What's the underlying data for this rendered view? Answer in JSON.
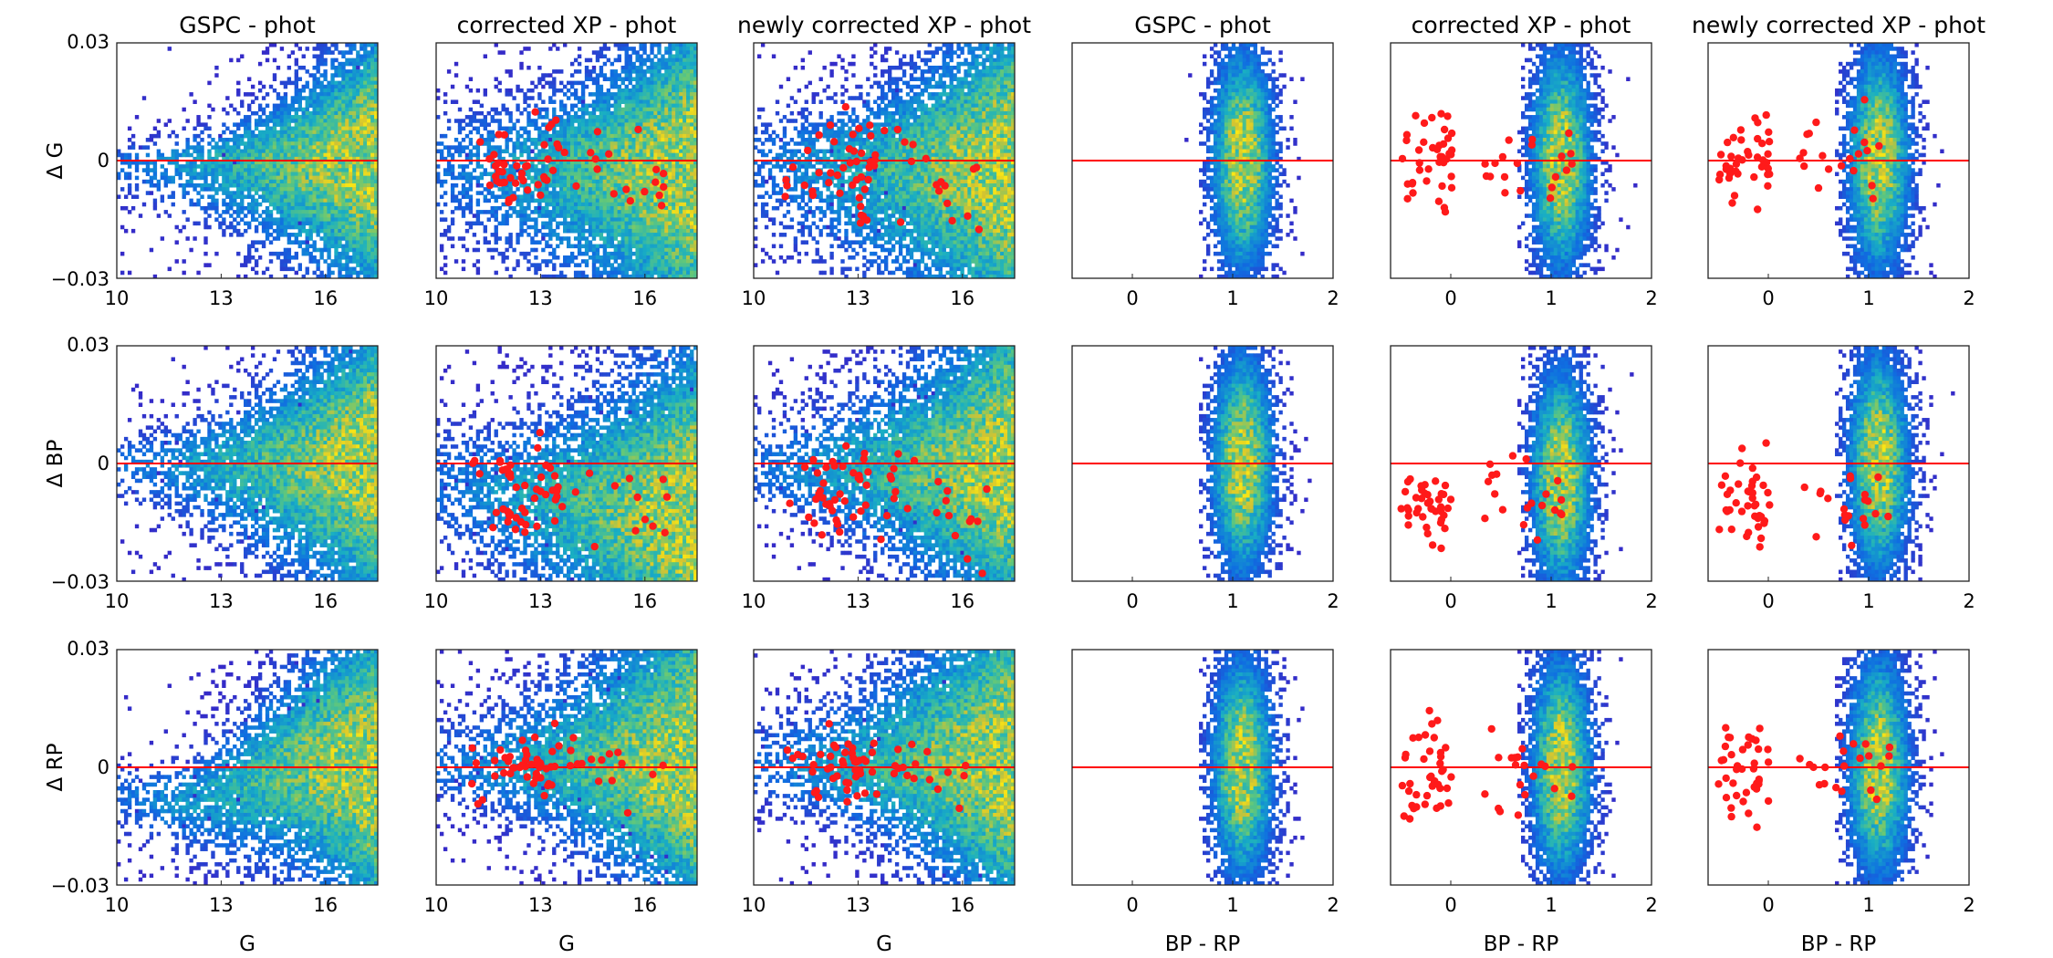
{
  "chart_data": {
    "type": "heatmap",
    "description_units": "magnitudes",
    "column_titles": [
      "GSPC - phot",
      "corrected XP - phot",
      "newly corrected XP - phot",
      "GSPC - phot",
      "corrected XP - phot",
      "newly corrected XP - phot"
    ],
    "row_ylabels": [
      "Δ G",
      "Δ BP",
      "Δ RP"
    ],
    "xlabels": [
      "G",
      "G",
      "G",
      "BP - RP",
      "BP - RP",
      "BP - RP"
    ],
    "ylim": [
      -0.03,
      0.03
    ],
    "ytick_labels": [
      "0.03",
      "0",
      "-0.03"
    ],
    "xlim_G": [
      10,
      17.5
    ],
    "xticks_G": [
      "10",
      "13",
      "16"
    ],
    "xlim_color": [
      -0.6,
      2
    ],
    "xticks_color": [
      "0",
      "1",
      "2"
    ],
    "reference_line": {
      "y": 0,
      "color": "#ff0000"
    },
    "colors": {
      "density_low": "#3b2fc0",
      "density_mid": "#25c0b0",
      "density_high": "#f2e21a",
      "outlier": "#ff1a1a"
    },
    "series": [
      {
        "name": "density histogram",
        "kind": "2d-histogram"
      },
      {
        "name": "outlier stars",
        "kind": "scatter",
        "marker_color": "#ff1a1a"
      }
    ],
    "panels": [
      {
        "row": 0,
        "col": 0,
        "x_axis": "G",
        "title": "GSPC - phot",
        "has_points": false
      },
      {
        "row": 0,
        "col": 1,
        "x_axis": "G",
        "title": "corrected XP - phot",
        "has_points": true
      },
      {
        "row": 0,
        "col": 2,
        "x_axis": "G",
        "title": "newly corrected XP - phot",
        "has_points": true
      },
      {
        "row": 0,
        "col": 3,
        "x_axis": "BP - RP",
        "title": "GSPC - phot",
        "has_points": false
      },
      {
        "row": 0,
        "col": 4,
        "x_axis": "BP - RP",
        "title": "corrected XP - phot",
        "has_points": true
      },
      {
        "row": 0,
        "col": 5,
        "x_axis": "BP - RP",
        "title": "newly corrected XP - phot",
        "has_points": true
      },
      {
        "row": 1,
        "col": 0,
        "x_axis": "G",
        "has_points": false
      },
      {
        "row": 1,
        "col": 1,
        "x_axis": "G",
        "has_points": true
      },
      {
        "row": 1,
        "col": 2,
        "x_axis": "G",
        "has_points": true
      },
      {
        "row": 1,
        "col": 3,
        "x_axis": "BP - RP",
        "has_points": false
      },
      {
        "row": 1,
        "col": 4,
        "x_axis": "BP - RP",
        "has_points": true
      },
      {
        "row": 1,
        "col": 5,
        "x_axis": "BP - RP",
        "has_points": true
      },
      {
        "row": 2,
        "col": 0,
        "x_axis": "G",
        "has_points": false
      },
      {
        "row": 2,
        "col": 1,
        "x_axis": "G",
        "has_points": true
      },
      {
        "row": 2,
        "col": 2,
        "x_axis": "G",
        "has_points": true
      },
      {
        "row": 2,
        "col": 3,
        "x_axis": "BP - RP",
        "has_points": false
      },
      {
        "row": 2,
        "col": 4,
        "x_axis": "BP - RP",
        "has_points": true
      },
      {
        "row": 2,
        "col": 5,
        "x_axis": "BP - RP",
        "has_points": true
      }
    ]
  }
}
